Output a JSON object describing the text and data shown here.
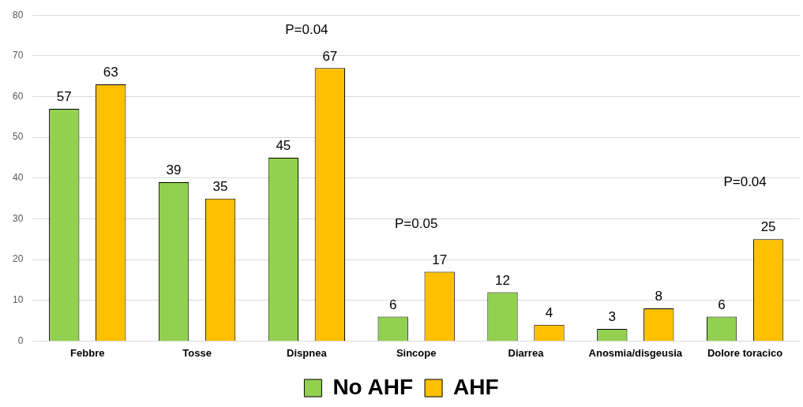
{
  "chart_data": {
    "type": "bar",
    "categories": [
      "Febbre",
      "Tosse",
      "Dispnea",
      "Sincope",
      "Diarrea",
      "Anosmia/disgeusia",
      "Dolore toracico"
    ],
    "series": [
      {
        "name": "No AHF",
        "color": "#92d050",
        "values": [
          57,
          39,
          45,
          6,
          12,
          3,
          6
        ]
      },
      {
        "name": "AHF",
        "color": "#ffc000",
        "values": [
          63,
          35,
          67,
          17,
          4,
          8,
          25
        ]
      }
    ],
    "ylim": [
      0,
      80
    ],
    "yticks": [
      0,
      10,
      20,
      30,
      40,
      50,
      60,
      70,
      80
    ],
    "grid": "y",
    "legend": "bottom",
    "data_labels": true,
    "annotations": [
      "P=0.04",
      "P=0.05",
      "P=0.04"
    ]
  }
}
